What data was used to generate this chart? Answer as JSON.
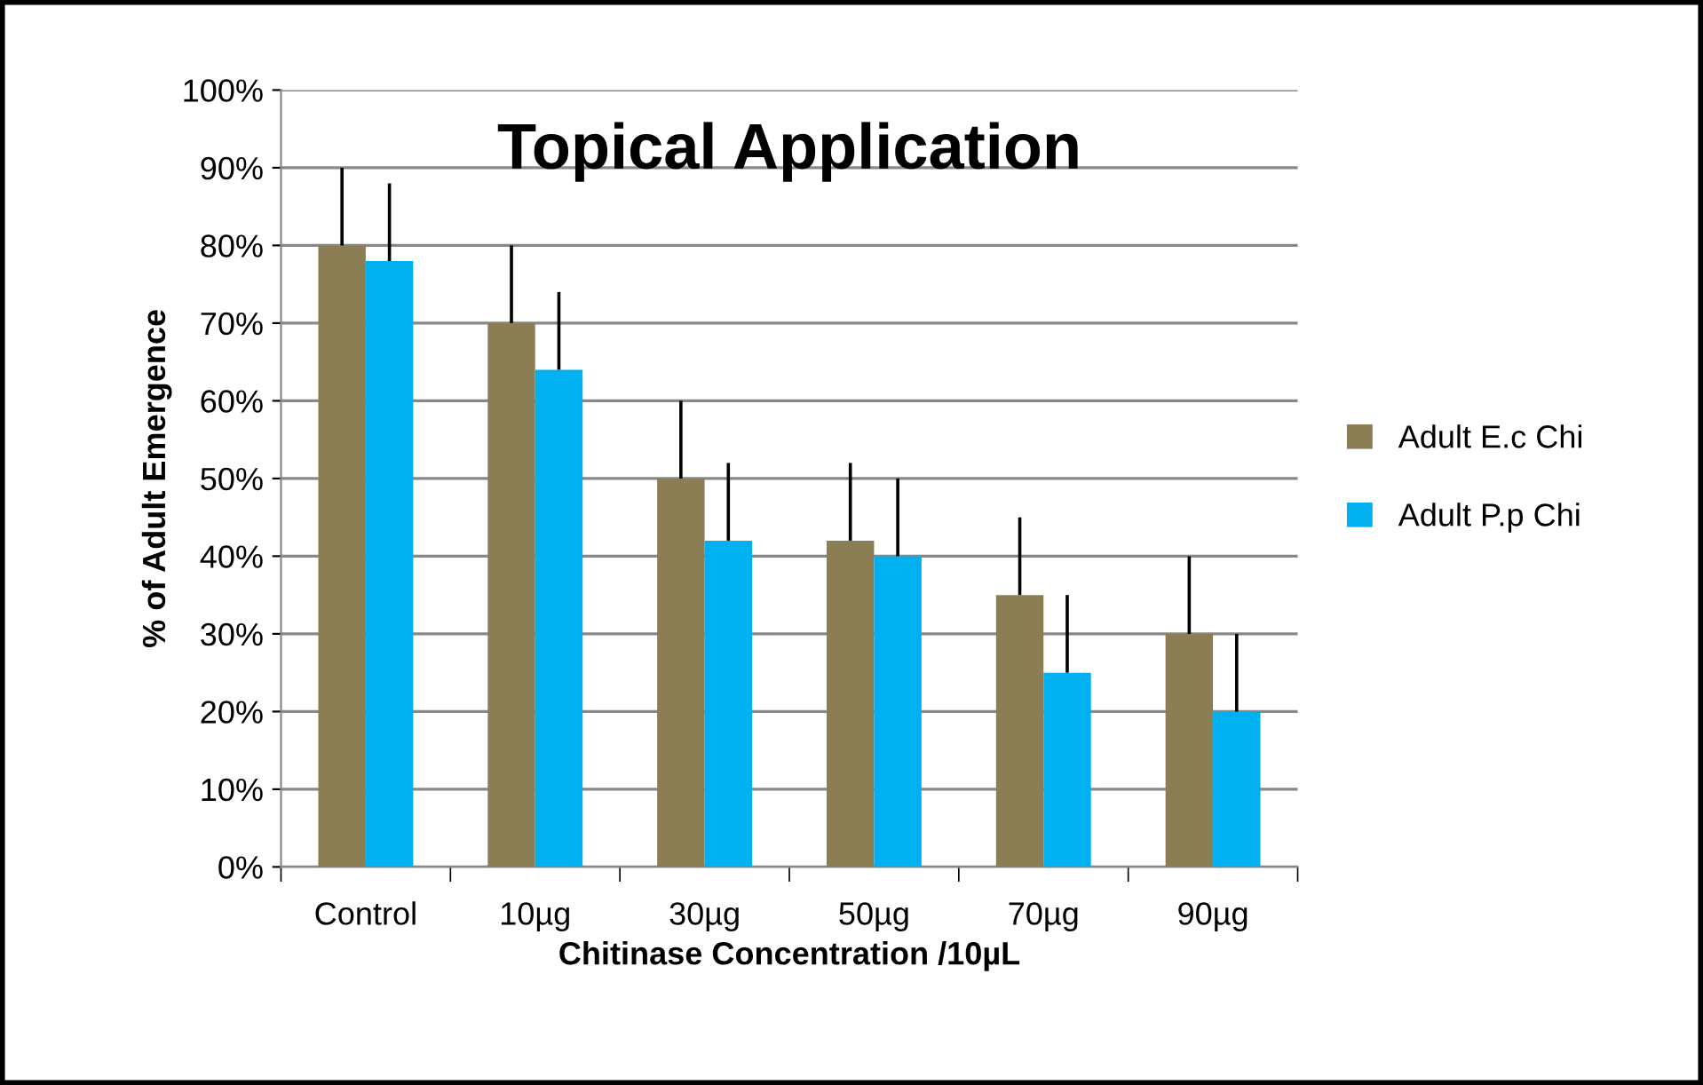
{
  "chart_data": {
    "type": "bar",
    "title": "Topical Application",
    "xlabel": "Chitinase Concentration /10µL",
    "ylabel": "% of Adult Emergence",
    "categories": [
      "Control",
      "10µg",
      "30µg",
      "50µg",
      "70µg",
      "90µg"
    ],
    "series": [
      {
        "name": "Adult E.c Chi",
        "color": "#8b7d54",
        "values": [
          80,
          70,
          50,
          42,
          35,
          30
        ],
        "errors": [
          [
            80,
            90
          ],
          [
            70,
            80
          ],
          [
            50,
            60
          ],
          [
            42,
            52
          ],
          [
            35,
            45
          ],
          [
            30,
            40
          ]
        ]
      },
      {
        "name": "Adult P.p Chi",
        "color": "#00b0f0",
        "values": [
          78,
          64,
          42,
          40,
          25,
          20
        ],
        "errors": [
          [
            78,
            88
          ],
          [
            64,
            74
          ],
          [
            42,
            52
          ],
          [
            40,
            50
          ],
          [
            25,
            35
          ],
          [
            20,
            30
          ]
        ]
      }
    ],
    "ylim": [
      0,
      100
    ],
    "yticks": [
      {
        "value": 0,
        "label": "0%"
      },
      {
        "value": 10,
        "label": "10%"
      },
      {
        "value": 20,
        "label": "20%"
      },
      {
        "value": 30,
        "label": "30%"
      },
      {
        "value": 40,
        "label": "40%"
      },
      {
        "value": 50,
        "label": "50%"
      },
      {
        "value": 60,
        "label": "60%"
      },
      {
        "value": 70,
        "label": "70%"
      },
      {
        "value": 80,
        "label": "80%"
      },
      {
        "value": 90,
        "label": "90%"
      },
      {
        "value": 100,
        "label": "100%"
      }
    ],
    "grid": "y",
    "legend": "right"
  }
}
